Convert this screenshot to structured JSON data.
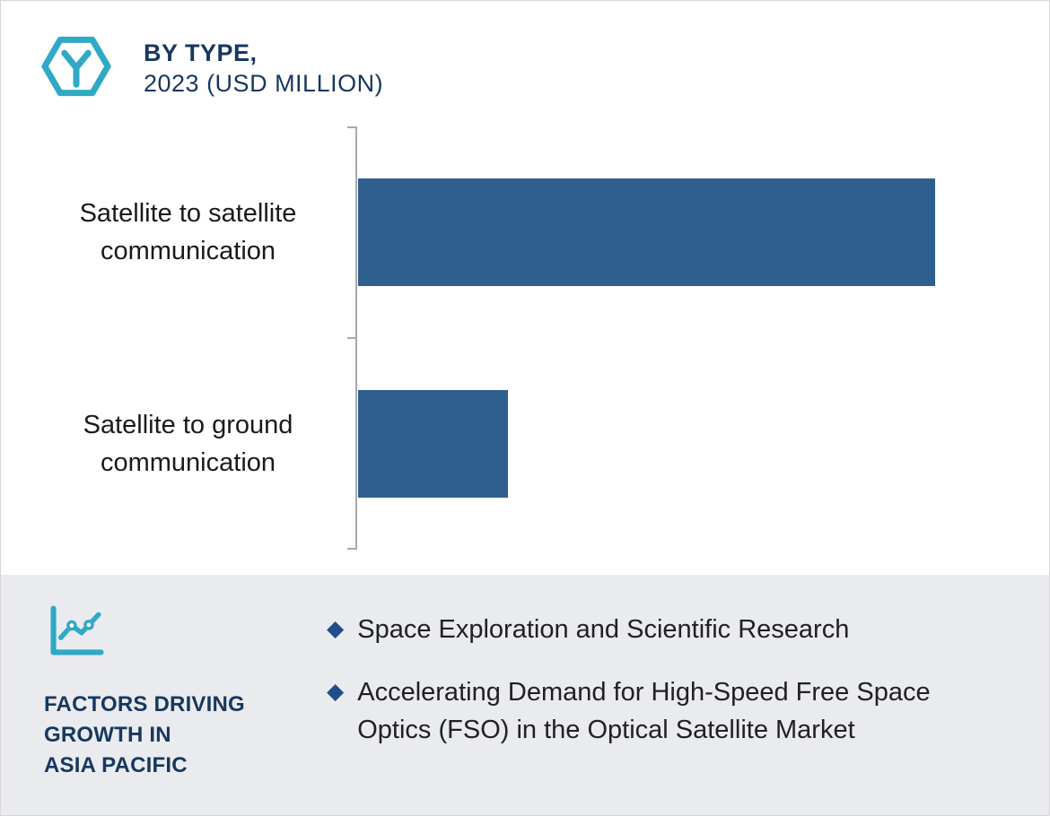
{
  "header": {
    "title_line1": "BY TYPE,",
    "title_line2": "2023 (USD MILLION)"
  },
  "chart_data": {
    "type": "bar",
    "orientation": "horizontal",
    "title": "BY TYPE, 2023 (USD MILLION)",
    "categories": [
      "Satellite to satellite communication",
      "Satellite to ground communication"
    ],
    "values": [
      100,
      26
    ],
    "values_unit": "relative (no numeric axis labels shown)",
    "xlim": [
      0,
      115
    ],
    "grid": false,
    "legend": "none",
    "bar_color": "#2E5F8F"
  },
  "factors_panel": {
    "heading_lines": [
      "FACTORS DRIVING",
      "GROWTH IN",
      "ASIA PACIFIC"
    ],
    "bullets": [
      "Space Exploration and Scientific Research",
      "Accelerating Demand for High-Speed Free Space Optics (FSO) in the Optical Satellite Market"
    ],
    "bullet_marker": "◆"
  },
  "icons": {
    "logo": "hexagon-y-logo-icon",
    "panel": "line-chart-icon"
  },
  "colors": {
    "bar": "#2E5F8F",
    "navy": "#17375E",
    "teal": "#2FA9C6",
    "panel_bg": "#E9EBEE",
    "diamond": "#1F4E8C",
    "text": "#212121",
    "axis": "#A8A8A8"
  }
}
